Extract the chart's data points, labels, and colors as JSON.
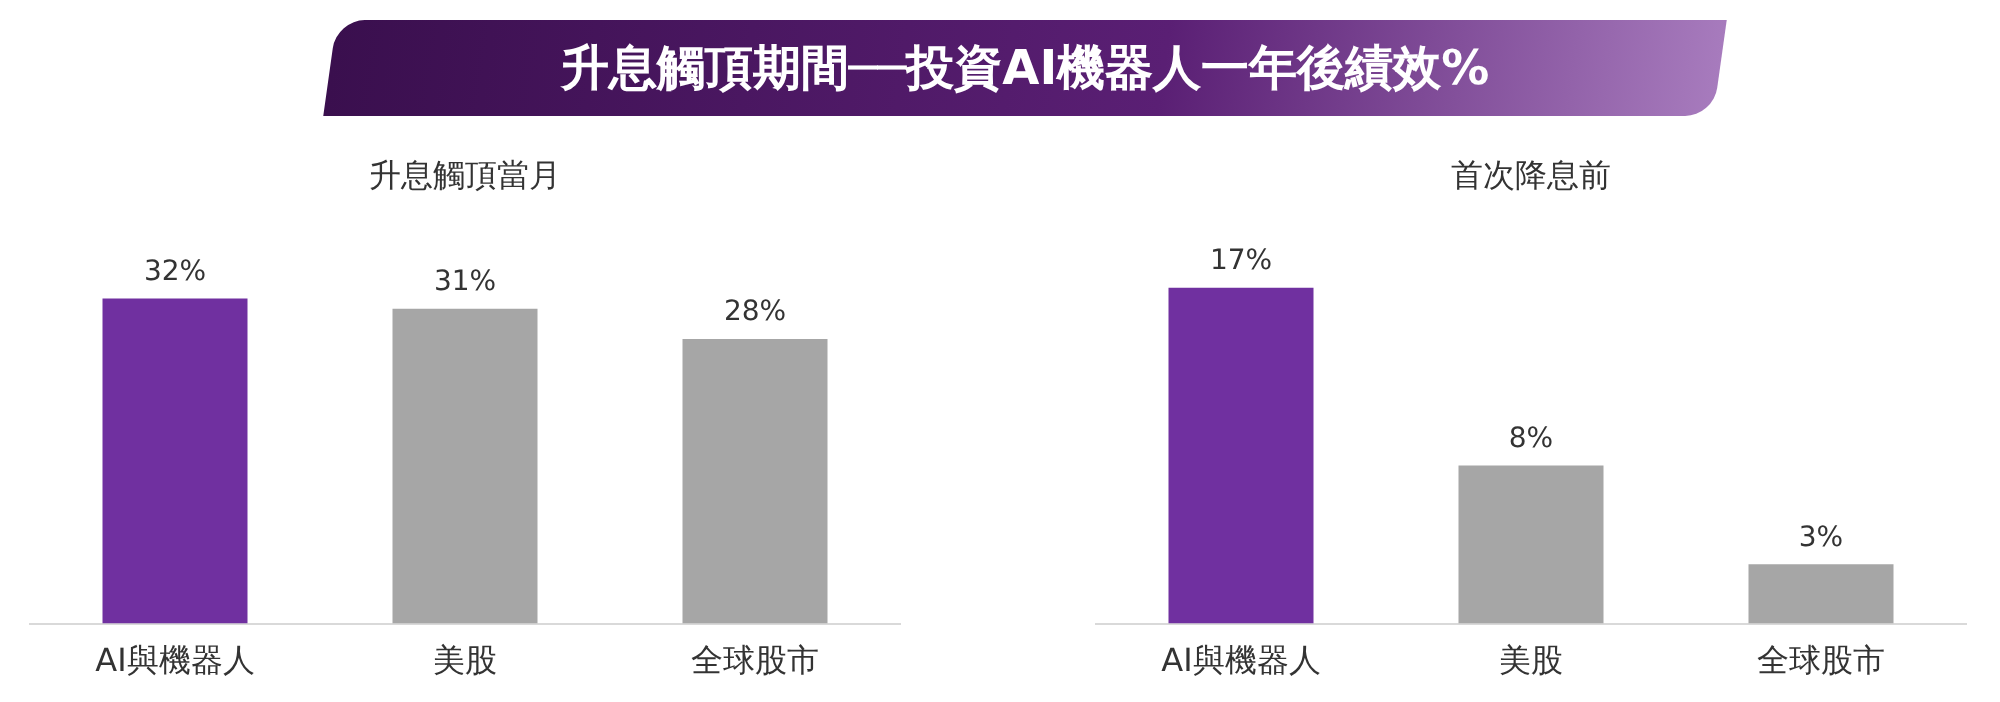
{
  "chart_data": [
    {
      "type": "bar",
      "title": "升息觸頂期間──投資AI機器人一年後績效%",
      "subtitle": "升息觸頂當月",
      "categories": [
        "AI與機器人",
        "美股",
        "全球股市"
      ],
      "values": [
        32,
        31,
        28
      ],
      "colors": [
        "#7030a0",
        "#a6a6a6",
        "#a6a6a6"
      ],
      "value_labels": [
        "32%",
        "31%",
        "28%"
      ],
      "tick_labels": "x",
      "grid": false,
      "legend": false
    },
    {
      "type": "bar",
      "subtitle": "首次降息前",
      "categories": [
        "AI與機器人",
        "美股",
        "全球股市"
      ],
      "values": [
        17,
        8,
        3
      ],
      "colors": [
        "#7030a0",
        "#a6a6a6",
        "#a6a6a6"
      ],
      "value_labels": [
        "17%",
        "8%",
        "3%"
      ],
      "tick_labels": "x",
      "grid": false,
      "legend": false
    }
  ]
}
